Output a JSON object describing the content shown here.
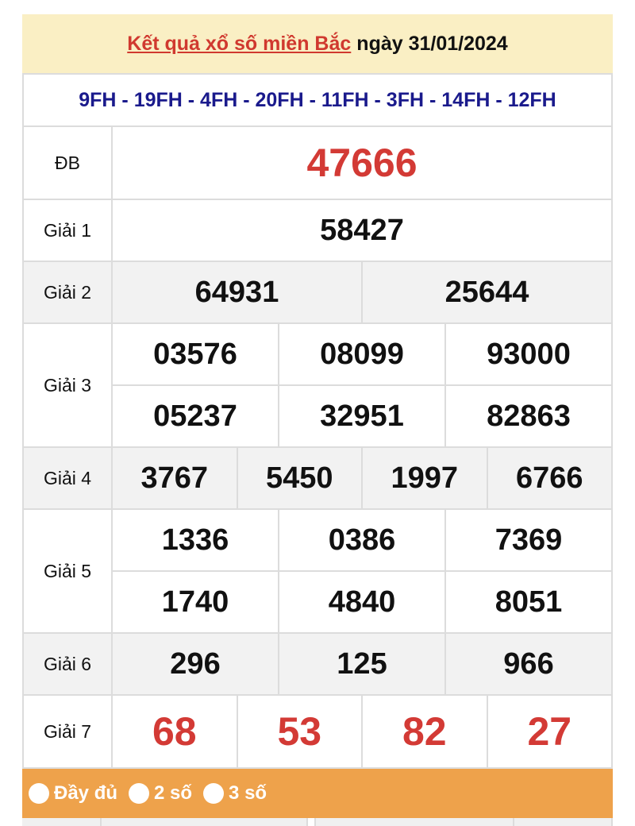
{
  "header": {
    "title_link": "Kết quả xổ số miền Bắc",
    "date_text": "ngày 31/01/2024"
  },
  "codes": "9FH - 19FH - 4FH - 20FH - 11FH - 3FH - 14FH - 12FH",
  "prizes": {
    "db": {
      "label": "ĐB",
      "numbers": [
        "47666"
      ]
    },
    "g1": {
      "label": "Giải 1",
      "numbers": [
        "58427"
      ]
    },
    "g2": {
      "label": "Giải 2",
      "numbers": [
        "64931",
        "25644"
      ]
    },
    "g3": {
      "label": "Giải 3",
      "numbers": [
        "03576",
        "08099",
        "93000",
        "05237",
        "32951",
        "82863"
      ]
    },
    "g4": {
      "label": "Giải 4",
      "numbers": [
        "3767",
        "5450",
        "1997",
        "6766"
      ]
    },
    "g5": {
      "label": "Giải 5",
      "numbers": [
        "1336",
        "0386",
        "7369",
        "1740",
        "4840",
        "8051"
      ]
    },
    "g6": {
      "label": "Giải 6",
      "numbers": [
        "296",
        "125",
        "966"
      ]
    },
    "g7": {
      "label": "Giải 7",
      "numbers": [
        "68",
        "53",
        "82",
        "27"
      ]
    }
  },
  "options": [
    "Đầy đủ",
    "2 số",
    "3 số"
  ],
  "colors": {
    "accent_red": "#d33a35",
    "code_blue": "#1a1a8c",
    "header_bg": "#faefc4",
    "bar_orange": "#eea24b"
  }
}
